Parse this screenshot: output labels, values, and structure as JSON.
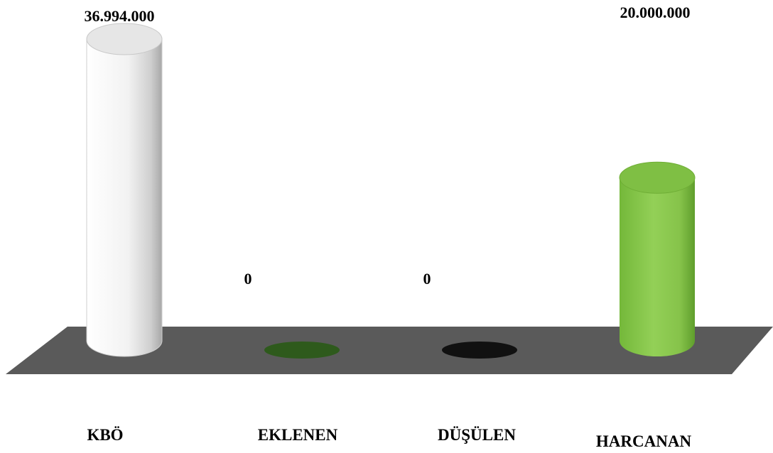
{
  "chart_data": {
    "type": "bar",
    "style": "3d-cylinder",
    "categories": [
      "KBÖ",
      "EKLENEN",
      "DÜŞÜLEN",
      "HARCANAN"
    ],
    "values": [
      36994000,
      0,
      0,
      20000000
    ],
    "value_labels": [
      "36.994.000",
      "0",
      "0",
      "20.000.000"
    ],
    "colors": [
      "#ffffff",
      "#2e5a1c",
      "#111111",
      "#8cc850"
    ],
    "floor_color": "#595959",
    "grid": false,
    "legend": "none"
  }
}
